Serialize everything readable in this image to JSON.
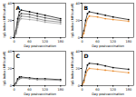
{
  "chart_data": [
    {
      "type": "line",
      "title": "A",
      "x_label": "Day postvaccination",
      "y_label": "IgG index (MFI/cutoff)",
      "x": [
        0,
        7,
        14,
        21,
        28,
        60,
        90,
        120,
        180
      ],
      "series": [
        {
          "color": "#000000",
          "marker": "circle",
          "values": [
            1,
            8,
            22,
            30,
            32,
            30,
            28,
            26,
            22
          ]
        },
        {
          "color": "#404040",
          "marker": "circle",
          "values": [
            1,
            6,
            18,
            26,
            28,
            27,
            25,
            23,
            20
          ]
        },
        {
          "color": "#707070",
          "marker": "circle",
          "values": [
            1,
            5,
            15,
            22,
            25,
            24,
            22,
            20,
            18
          ]
        },
        {
          "color": "#a0a0a0",
          "marker": "circle",
          "values": [
            1,
            4,
            12,
            20,
            22,
            21,
            20,
            18,
            16
          ]
        }
      ],
      "xlim": [
        0,
        200
      ],
      "xticks": [
        0,
        60,
        120,
        180
      ],
      "ylim": [
        0,
        40
      ],
      "yticks": [
        0,
        20,
        40
      ]
    },
    {
      "type": "line",
      "title": "B",
      "x_label": "Day postvaccination",
      "y_label": "IgG index (MFI/cutoff)",
      "x": [
        0,
        7,
        14,
        21,
        28,
        60,
        90,
        120,
        180
      ],
      "series": [
        {
          "color": "#000000",
          "marker": "circle",
          "values": [
            1,
            8,
            20,
            28,
            30,
            28,
            26,
            24,
            21
          ]
        },
        {
          "color": "#e8892b",
          "marker": "circle",
          "values": [
            1,
            5,
            14,
            22,
            25,
            24,
            22,
            21,
            19
          ]
        }
      ],
      "xlim": [
        0,
        200
      ],
      "xticks": [
        0,
        60,
        120,
        180
      ],
      "ylim": [
        0,
        40
      ],
      "yticks": [
        0,
        20,
        40
      ]
    },
    {
      "type": "line",
      "title": "C",
      "x_label": "Day postvaccination",
      "y_label": "IgG index (MFI/cutoff)",
      "x": [
        0,
        7,
        14,
        21,
        28,
        60,
        90,
        120,
        180
      ],
      "series": [
        {
          "color": "#000000",
          "marker": "circle",
          "values": [
            1,
            3,
            8,
            10,
            10,
            9,
            8,
            8,
            7
          ]
        },
        {
          "color": "#808080",
          "marker": "circle",
          "values": [
            1,
            2,
            6,
            8,
            9,
            8,
            7,
            7,
            6
          ]
        }
      ],
      "xlim": [
        0,
        200
      ],
      "xticks": [
        0,
        60,
        120,
        180
      ],
      "ylim": [
        0,
        40
      ],
      "yticks": [
        0,
        20,
        40
      ]
    },
    {
      "type": "line",
      "title": "D",
      "x_label": "Day postvaccination",
      "y_label": "IgG index (MFI/cutoff)",
      "x": [
        0,
        7,
        14,
        21,
        28,
        60,
        90,
        120,
        180
      ],
      "series": [
        {
          "color": "#000000",
          "marker": "circle",
          "values": [
            1,
            6,
            16,
            24,
            26,
            25,
            23,
            21,
            19
          ]
        },
        {
          "color": "#e8892b",
          "marker": "circle",
          "values": [
            1,
            4,
            12,
            18,
            20,
            19,
            18,
            17,
            15
          ]
        }
      ],
      "xlim": [
        0,
        200
      ],
      "xticks": [
        0,
        60,
        120,
        180
      ],
      "ylim": [
        0,
        40
      ],
      "yticks": [
        0,
        20,
        40
      ]
    }
  ]
}
